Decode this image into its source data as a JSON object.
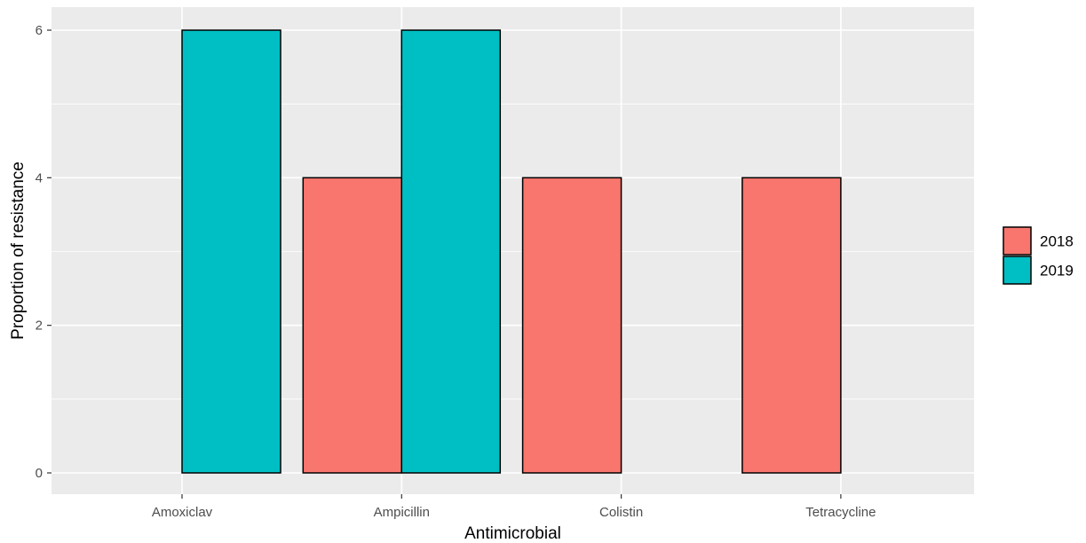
{
  "chart_data": {
    "type": "bar",
    "categories": [
      "Amoxiclav",
      "Ampicillin",
      "Colistin",
      "Tetracycline"
    ],
    "series": [
      {
        "name": "2018",
        "values": [
          0,
          4,
          4,
          4
        ],
        "color": "#F8766D"
      },
      {
        "name": "2019",
        "values": [
          6,
          6,
          0,
          0
        ],
        "color": "#00BFC4"
      }
    ],
    "title": "",
    "xlabel": "Antimicrobial",
    "ylabel": "Proportion of resistance",
    "ylim": [
      0,
      6
    ],
    "yticks": [
      0,
      2,
      4,
      6
    ],
    "grid": true,
    "legend_position": "right",
    "panel_background": "#EBEBEB",
    "bar_outline": "#000000"
  }
}
